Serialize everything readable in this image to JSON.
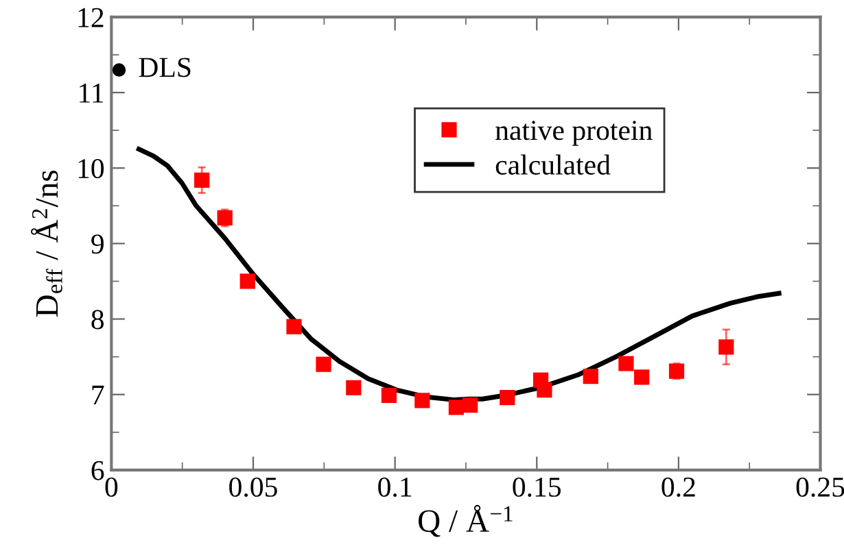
{
  "chart_data": {
    "type": "scatter",
    "xlabel": "Q / Å$^{−1}$",
    "ylabel": "D$_{eff}$ / Å$^{2}$/ns",
    "xlim": [
      0,
      0.25
    ],
    "ylim": [
      6,
      12
    ],
    "xticks": [
      0,
      0.05,
      0.1,
      0.15,
      0.2,
      0.25
    ],
    "yticks": [
      6,
      7,
      8,
      9,
      10,
      11,
      12
    ],
    "grid": false,
    "legend": "top right",
    "annotations": [
      {
        "text": "DLS",
        "x": 0.0027,
        "y": 11.3
      }
    ],
    "series": [
      {
        "type": "scatter",
        "marker": "circle",
        "color": "#000000",
        "x": [
          0.0027
        ],
        "values": [
          11.3
        ],
        "errors": [
          0.06
        ]
      },
      {
        "name": "native protein",
        "marker": "square",
        "color": "#ff0000",
        "x": [
          0.0319,
          0.04,
          0.048,
          0.0644,
          0.0748,
          0.0854,
          0.0979,
          0.1096,
          0.1216,
          0.1265,
          0.1396,
          0.1514,
          0.1527,
          0.169,
          0.1815,
          0.187,
          0.1993,
          0.2168
        ],
        "values": [
          9.84,
          9.34,
          8.5,
          7.9,
          7.4,
          7.09,
          6.99,
          6.92,
          6.83,
          6.86,
          6.96,
          7.19,
          7.06,
          7.24,
          7.41,
          7.23,
          7.31,
          7.63
        ],
        "errors": [
          0.17,
          0.11,
          0.05,
          0.04,
          null,
          null,
          null,
          null,
          null,
          null,
          null,
          null,
          null,
          null,
          null,
          null,
          0.1,
          0.23
        ]
      },
      {
        "name": "calculated",
        "type": "line",
        "marker": "none",
        "line_style": "solid",
        "color": "#000000",
        "x": [
          0.0097,
          0.0148,
          0.0198,
          0.0249,
          0.0299,
          0.04,
          0.0501,
          0.0602,
          0.0703,
          0.0804,
          0.0905,
          0.1006,
          0.1106,
          0.1207,
          0.1258,
          0.1308,
          0.139,
          0.151,
          0.1645,
          0.1779,
          0.1914,
          0.2048,
          0.2183,
          0.2284,
          0.2354
        ],
        "values": [
          10.25,
          10.16,
          10.03,
          9.8,
          9.5,
          9.07,
          8.59,
          8.16,
          7.74,
          7.44,
          7.21,
          7.06,
          6.97,
          6.93,
          6.94,
          6.94,
          6.99,
          7.09,
          7.26,
          7.5,
          7.77,
          8.04,
          8.21,
          8.3,
          8.34
        ]
      }
    ]
  }
}
